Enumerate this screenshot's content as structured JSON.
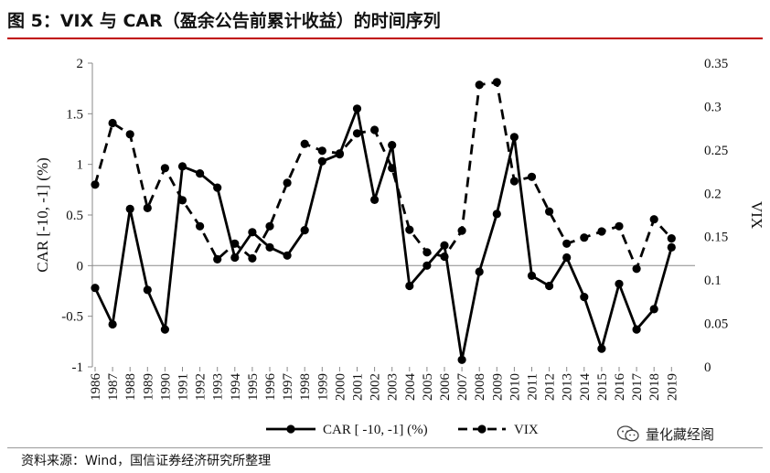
{
  "figure": {
    "title": "图 5：VIX 与 CAR（盈余公告前累计收益）的时间序列",
    "source": "资料来源：Wind，国信证券经济研究所整理",
    "watermark": "量化藏经阁"
  },
  "colors": {
    "title_rule": "#c00000",
    "series": "#000000"
  },
  "chart_data": {
    "type": "line",
    "title": "VIX 与 CAR（盈余公告前累计收益）的时间序列",
    "x": [
      "1986",
      "1987",
      "1988",
      "1989",
      "1990",
      "1991",
      "1992",
      "1993",
      "1994",
      "1995",
      "1996",
      "1997",
      "1998",
      "1999",
      "2000",
      "2001",
      "2002",
      "2003",
      "2004",
      "2005",
      "2006",
      "2007",
      "2008",
      "2009",
      "2010",
      "2011",
      "2012",
      "2013",
      "2014",
      "2015",
      "2016",
      "2017",
      "2018",
      "2019"
    ],
    "xlabel": "",
    "ylabel": "CAR [-10, -1] (%)",
    "y2label": "VIX",
    "ylim": [
      -1,
      2
    ],
    "y2lim": [
      0,
      0.35
    ],
    "yticks": [
      "2",
      "1.5",
      "1",
      "0.5",
      "0",
      "-0.5",
      "-1"
    ],
    "y2ticks": [
      "0.35",
      "0.3",
      "0.25",
      "0.2",
      "0.15",
      "0.1",
      "0.05",
      "0"
    ],
    "grid": false,
    "legend_position": "bottom",
    "series": [
      {
        "name": "CAR [ -10, -1] (%)",
        "axis": "left",
        "style": "solid",
        "values": [
          -0.22,
          -0.58,
          0.56,
          -0.24,
          -0.63,
          0.98,
          0.91,
          0.77,
          0.08,
          0.33,
          0.18,
          0.1,
          0.35,
          1.03,
          1.1,
          1.55,
          0.65,
          1.19,
          -0.2,
          0.0,
          0.2,
          -0.93,
          -0.06,
          0.51,
          1.27,
          -0.1,
          -0.2,
          0.08,
          -0.31,
          -0.82,
          -0.18,
          -0.63,
          -0.43,
          0.18
        ]
      },
      {
        "name": "VIX",
        "axis": "right",
        "style": "dashed",
        "values": [
          0.21,
          0.281,
          0.268,
          0.183,
          0.229,
          0.192,
          0.162,
          0.124,
          0.142,
          0.125,
          0.162,
          0.212,
          0.257,
          0.249,
          0.246,
          0.269,
          0.273,
          0.229,
          0.158,
          0.132,
          0.127,
          0.157,
          0.325,
          0.328,
          0.214,
          0.219,
          0.179,
          0.142,
          0.149,
          0.156,
          0.162,
          0.113,
          0.17,
          0.148
        ]
      }
    ]
  }
}
